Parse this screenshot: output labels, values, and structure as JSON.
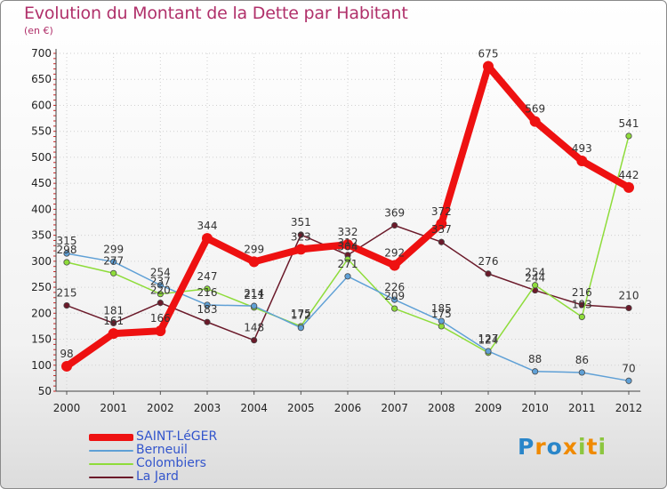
{
  "header": {
    "title": "Evolution du Montant de la Dette par Habitant",
    "subtitle": "(en €)"
  },
  "logo": {
    "text": "Proxiti",
    "colors": [
      "#2a86c9",
      "#f08a00",
      "#2a86c9",
      "#f08a00",
      "#8cc63f",
      "#f08a00",
      "#8cc63f"
    ]
  },
  "chart_data": {
    "type": "line",
    "title": "Evolution du Montant de la Dette par Habitant",
    "subtitle": "(en €)",
    "xlabel": "",
    "ylabel": "",
    "x": [
      "2000",
      "2001",
      "2002",
      "2003",
      "2004",
      "2005",
      "2006",
      "2007",
      "2008",
      "2009",
      "2010",
      "2011",
      "2012"
    ],
    "ylim": [
      50,
      700
    ],
    "yticks": [
      50,
      100,
      150,
      200,
      250,
      300,
      350,
      400,
      450,
      500,
      550,
      600,
      650,
      700
    ],
    "grid": true,
    "legend_position": "bottom-left",
    "series": [
      {
        "name": "SAINT-LéGER",
        "color": "#ee1111",
        "values": [
          98,
          161,
          166,
          344,
          299,
          323,
          332,
          292,
          372,
          675,
          569,
          493,
          442
        ],
        "labels": [
          "98",
          "161",
          "166",
          "344",
          "299",
          "323",
          "332",
          "292",
          "372",
          "675",
          "569",
          "493",
          "442"
        ]
      },
      {
        "name": "Berneuil",
        "color": "#5fa0d6",
        "values": [
          315,
          299,
          254,
          216,
          214,
          172,
          271,
          226,
          185,
          127,
          88,
          86,
          70
        ],
        "labels": [
          "315",
          "299",
          "254",
          "216",
          "214",
          "172",
          "271",
          "226",
          "185",
          "127",
          "88",
          "86",
          "70"
        ]
      },
      {
        "name": "Colombiers",
        "color": "#8edc3a",
        "values": [
          298,
          277,
          237,
          247,
          211,
          175,
          304,
          209,
          175,
          124,
          254,
          193,
          541
        ],
        "labels": [
          "298",
          "277",
          "237",
          "247",
          "211",
          "175",
          "304",
          "209",
          "175",
          "124",
          "254",
          "193",
          "541"
        ]
      },
      {
        "name": "La Jard",
        "color": "#6b1a2a",
        "values": [
          215,
          181,
          220,
          183,
          148,
          351,
          312,
          369,
          337,
          276,
          244,
          216,
          210
        ],
        "labels": [
          "215",
          "181",
          "220",
          "183",
          "148",
          "351",
          "312",
          "369",
          "337",
          "276",
          "244",
          "216",
          "210"
        ]
      }
    ]
  }
}
